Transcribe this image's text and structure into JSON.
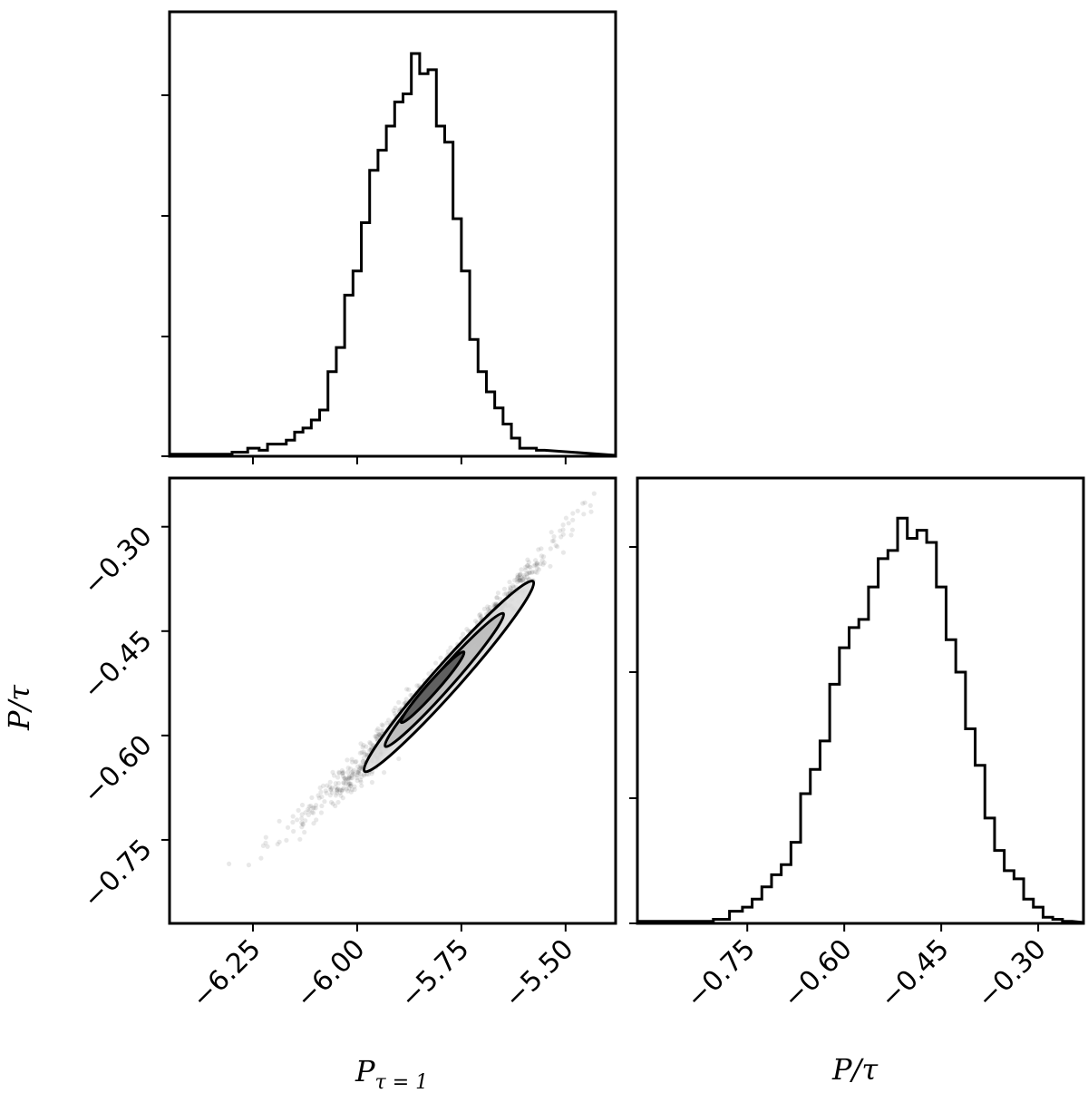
{
  "chart_data": [
    {
      "type": "histogram",
      "panel": "top-left",
      "parameter": "P_{τ=1}",
      "xlim": [
        -6.45,
        -5.38
      ],
      "bins": [
        {
          "x": -6.44,
          "count": 0.005
        },
        {
          "x": -6.4,
          "count": 0.005
        },
        {
          "x": -6.36,
          "count": 0.005
        },
        {
          "x": -6.32,
          "count": 0.005
        },
        {
          "x": -6.28,
          "count": 0.01
        },
        {
          "x": -6.245,
          "count": 0.02
        },
        {
          "x": -6.225,
          "count": 0.015
        },
        {
          "x": -6.205,
          "count": 0.03
        },
        {
          "x": -6.18,
          "count": 0.03
        },
        {
          "x": -6.16,
          "count": 0.04
        },
        {
          "x": -6.14,
          "count": 0.06
        },
        {
          "x": -6.12,
          "count": 0.07
        },
        {
          "x": -6.1,
          "count": 0.09
        },
        {
          "x": -6.08,
          "count": 0.115
        },
        {
          "x": -6.06,
          "count": 0.21
        },
        {
          "x": -6.04,
          "count": 0.27
        },
        {
          "x": -6.02,
          "count": 0.4
        },
        {
          "x": -6.0,
          "count": 0.46
        },
        {
          "x": -5.98,
          "count": 0.58
        },
        {
          "x": -5.96,
          "count": 0.71
        },
        {
          "x": -5.94,
          "count": 0.76
        },
        {
          "x": -5.92,
          "count": 0.82
        },
        {
          "x": -5.9,
          "count": 0.88
        },
        {
          "x": -5.88,
          "count": 0.9
        },
        {
          "x": -5.86,
          "count": 1.0
        },
        {
          "x": -5.84,
          "count": 0.95
        },
        {
          "x": -5.82,
          "count": 0.96
        },
        {
          "x": -5.8,
          "count": 0.82
        },
        {
          "x": -5.78,
          "count": 0.78
        },
        {
          "x": -5.76,
          "count": 0.59
        },
        {
          "x": -5.74,
          "count": 0.46
        },
        {
          "x": -5.72,
          "count": 0.29
        },
        {
          "x": -5.7,
          "count": 0.21
        },
        {
          "x": -5.68,
          "count": 0.16
        },
        {
          "x": -5.66,
          "count": 0.12
        },
        {
          "x": -5.64,
          "count": 0.08
        },
        {
          "x": -5.62,
          "count": 0.045
        },
        {
          "x": -5.6,
          "count": 0.02
        },
        {
          "x": -5.58,
          "count": 0.02
        },
        {
          "x": -5.56,
          "count": 0.015
        }
      ]
    },
    {
      "type": "scatter",
      "panel": "bottom-left",
      "description_of_relation": "strongly correlated samples with 2D density contours",
      "xlabel": "P_{τ=1}",
      "ylabel": "P/τ",
      "xlim": [
        -6.45,
        -5.38
      ],
      "ylim": [
        -0.87,
        -0.23
      ],
      "x_ticks": [
        "−6.25",
        "−6.00",
        "−5.75",
        "−5.50"
      ],
      "y_ticks": [
        "−0.30",
        "−0.45",
        "−0.60",
        "−0.75"
      ],
      "trend": [
        {
          "x": -6.4,
          "y": -0.84
        },
        {
          "x": -6.2,
          "y": -0.75
        },
        {
          "x": -6.0,
          "y": -0.65
        },
        {
          "x": -5.8,
          "y": -0.52
        },
        {
          "x": -5.6,
          "y": -0.38
        },
        {
          "x": -5.42,
          "y": -0.24
        }
      ]
    },
    {
      "type": "histogram",
      "panel": "bottom-right",
      "parameter": "P/τ",
      "xlim": [
        -0.92,
        -0.23
      ],
      "bins": [
        {
          "x": -0.905,
          "count": 0.005
        },
        {
          "x": -0.875,
          "count": 0.005
        },
        {
          "x": -0.845,
          "count": 0.005
        },
        {
          "x": -0.815,
          "count": 0.005
        },
        {
          "x": -0.79,
          "count": 0.01
        },
        {
          "x": -0.765,
          "count": 0.03
        },
        {
          "x": -0.75,
          "count": 0.04
        },
        {
          "x": -0.735,
          "count": 0.06
        },
        {
          "x": -0.72,
          "count": 0.09
        },
        {
          "x": -0.705,
          "count": 0.12
        },
        {
          "x": -0.69,
          "count": 0.145
        },
        {
          "x": -0.675,
          "count": 0.2
        },
        {
          "x": -0.66,
          "count": 0.32
        },
        {
          "x": -0.645,
          "count": 0.38
        },
        {
          "x": -0.63,
          "count": 0.45
        },
        {
          "x": -0.615,
          "count": 0.59
        },
        {
          "x": -0.6,
          "count": 0.68
        },
        {
          "x": -0.585,
          "count": 0.73
        },
        {
          "x": -0.57,
          "count": 0.75
        },
        {
          "x": -0.555,
          "count": 0.83
        },
        {
          "x": -0.54,
          "count": 0.9
        },
        {
          "x": -0.525,
          "count": 0.92
        },
        {
          "x": -0.51,
          "count": 1.0
        },
        {
          "x": -0.495,
          "count": 0.95
        },
        {
          "x": -0.48,
          "count": 0.97
        },
        {
          "x": -0.465,
          "count": 0.94
        },
        {
          "x": -0.45,
          "count": 0.83
        },
        {
          "x": -0.435,
          "count": 0.7
        },
        {
          "x": -0.42,
          "count": 0.62
        },
        {
          "x": -0.405,
          "count": 0.48
        },
        {
          "x": -0.39,
          "count": 0.39
        },
        {
          "x": -0.375,
          "count": 0.26
        },
        {
          "x": -0.36,
          "count": 0.18
        },
        {
          "x": -0.345,
          "count": 0.13
        },
        {
          "x": -0.33,
          "count": 0.11
        },
        {
          "x": -0.315,
          "count": 0.06
        },
        {
          "x": -0.3,
          "count": 0.04
        },
        {
          "x": -0.285,
          "count": 0.015
        },
        {
          "x": -0.27,
          "count": 0.01
        },
        {
          "x": -0.255,
          "count": 0.005
        }
      ],
      "xlabel": "P/τ",
      "x_ticks": [
        "−0.75",
        "−0.60",
        "−0.45",
        "−0.30"
      ]
    }
  ],
  "labels": {
    "x_left": "P",
    "x_left_sub": "τ = 1",
    "x_right": "P/τ",
    "y_left": "P/τ"
  }
}
